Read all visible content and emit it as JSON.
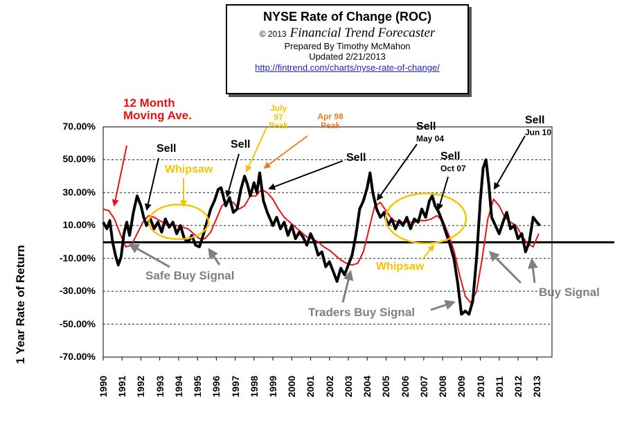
{
  "header": {
    "title": "NYSE Rate of Change (ROC)",
    "copyright": "© 2013",
    "brand": "Financial Trend Forecaster",
    "prepared_by": "Prepared By Timothy McMahon",
    "updated": "Updated 2/21/2013",
    "url": "http://fintrend.com/charts/nyse-rate-of-change/"
  },
  "annotations": {
    "moving_avg": "12 Month Moving Ave.",
    "sell_1992": "Sell",
    "sell_1997": "Sell",
    "july97": "July 97 Peak",
    "apr98": "Apr 98 Peak",
    "whipsaw_1": "Whipsaw",
    "sell_2003": "Sell",
    "sell_may04": "Sell",
    "may04": "May 04",
    "sell_oct07": "Sell",
    "oct07": "Oct 07",
    "sell_jun10": "Sell",
    "jun10": "Jun 10",
    "safe_buy": "Safe Buy Signal",
    "whipsaw_2": "Whipsaw",
    "traders_buy": "Traders Buy Signal",
    "buy_signal": "Buy Signal"
  },
  "colors": {
    "roc_line": "#000000",
    "moving_avg_line": "#ee1111",
    "sell_arrow": "#000000",
    "buy_arrow": "#808080",
    "whipsaw": "#f5c400",
    "apr98_arrow": "#ee7d22"
  },
  "chart_data": {
    "type": "line",
    "ylabel": "1 Year Rate of Return",
    "xlabel": "",
    "ylim": [
      -70,
      70
    ],
    "xlim": [
      1990,
      2013.8
    ],
    "y_ticks": [
      "70.00%",
      "50.00%",
      "30.00%",
      "10.00%",
      "-10.00%",
      "-30.00%",
      "-50.00%",
      "-70.00%"
    ],
    "x_ticks": [
      "1990",
      "1991",
      "1992",
      "1993",
      "1994",
      "1995",
      "1996",
      "1997",
      "1998",
      "1999",
      "2000",
      "2001",
      "2002",
      "2003",
      "2004",
      "2005",
      "2006",
      "2007",
      "2008",
      "2009",
      "2010",
      "2011",
      "2012",
      "2013"
    ],
    "grid": "horizontal dashed",
    "zero_line": true,
    "series": [
      {
        "name": "",
        "x": [
          1990.0,
          1990.2,
          1990.35,
          1990.5,
          1990.65,
          1990.8,
          1990.95,
          1991.1,
          1991.25,
          1991.4,
          1991.6,
          1991.8,
          1992.0,
          1992.15,
          1992.3,
          1992.5,
          1992.7,
          1992.9,
          1993.1,
          1993.3,
          1993.5,
          1993.7,
          1993.9,
          1994.1,
          1994.3,
          1994.5,
          1994.7,
          1994.9,
          1995.1,
          1995.3,
          1995.5,
          1995.7,
          1995.9,
          1996.1,
          1996.25,
          1996.5,
          1996.7,
          1996.9,
          1997.1,
          1997.3,
          1997.5,
          1997.65,
          1997.8,
          1998.0,
          1998.15,
          1998.3,
          1998.5,
          1998.7,
          1998.85,
          1999.0,
          1999.2,
          1999.4,
          1999.6,
          1999.8,
          2000.0,
          2000.2,
          2000.4,
          2000.6,
          2000.8,
          2001.0,
          2001.2,
          2001.4,
          2001.6,
          2001.8,
          2002.0,
          2002.2,
          2002.4,
          2002.6,
          2002.8,
          2003.0,
          2003.2,
          2003.4,
          2003.6,
          2003.8,
          2004.0,
          2004.15,
          2004.3,
          2004.5,
          2004.7,
          2004.9,
          2005.1,
          2005.3,
          2005.5,
          2005.7,
          2005.9,
          2006.1,
          2006.3,
          2006.5,
          2006.7,
          2006.9,
          2007.1,
          2007.3,
          2007.45,
          2007.6,
          2007.8,
          2008.0,
          2008.2,
          2008.4,
          2008.6,
          2008.8,
          2009.0,
          2009.2,
          2009.4,
          2009.6,
          2009.8,
          2010.0,
          2010.15,
          2010.3,
          2010.45,
          2010.6,
          2010.8,
          2011.0,
          2011.2,
          2011.4,
          2011.6,
          2011.8,
          2012.0,
          2012.2,
          2012.4,
          2012.6,
          2012.8,
          2013.0,
          2013.15
        ],
        "values": [
          12,
          8,
          13,
          0,
          -8,
          -14,
          -9,
          5,
          12,
          4,
          18,
          28,
          22,
          15,
          10,
          14,
          8,
          12,
          6,
          14,
          9,
          12,
          5,
          10,
          2,
          0,
          4,
          -2,
          -3,
          4,
          12,
          20,
          25,
          32,
          33,
          22,
          27,
          18,
          20,
          32,
          40,
          35,
          28,
          36,
          30,
          42,
          25,
          18,
          14,
          10,
          15,
          8,
          12,
          4,
          10,
          2,
          6,
          3,
          -2,
          5,
          0,
          -8,
          -6,
          -15,
          -12,
          -18,
          -24,
          -16,
          -20,
          -14,
          -8,
          4,
          20,
          25,
          33,
          42,
          30,
          20,
          15,
          18,
          10,
          14,
          8,
          13,
          10,
          15,
          8,
          14,
          12,
          20,
          15,
          25,
          28,
          22,
          18,
          12,
          5,
          -2,
          -10,
          -25,
          -44,
          -42,
          -44,
          -36,
          -10,
          25,
          45,
          50,
          35,
          15,
          10,
          5,
          12,
          18,
          8,
          10,
          2,
          5,
          -6,
          0,
          15,
          12,
          10
        ],
        "color": "#000000"
      },
      {
        "name": "12 Month Moving Ave.",
        "x": [
          1990.0,
          1990.3,
          1990.6,
          1990.9,
          1991.2,
          1991.5,
          1991.8,
          1992.1,
          1992.4,
          1992.7,
          1993.0,
          1993.3,
          1993.6,
          1993.9,
          1994.2,
          1994.5,
          1994.8,
          1995.1,
          1995.4,
          1995.7,
          1996.0,
          1996.3,
          1996.6,
          1996.9,
          1997.2,
          1997.5,
          1997.8,
          1998.1,
          1998.4,
          1998.7,
          1999.0,
          1999.3,
          1999.6,
          1999.9,
          2000.2,
          2000.5,
          2000.8,
          2001.1,
          2001.4,
          2001.7,
          2002.0,
          2002.3,
          2002.6,
          2002.9,
          2003.2,
          2003.5,
          2003.8,
          2004.1,
          2004.4,
          2004.7,
          2005.0,
          2005.3,
          2005.6,
          2005.9,
          2006.2,
          2006.5,
          2006.8,
          2007.1,
          2007.4,
          2007.7,
          2008.0,
          2008.3,
          2008.6,
          2008.9,
          2009.2,
          2009.5,
          2009.8,
          2010.1,
          2010.4,
          2010.7,
          2011.0,
          2011.3,
          2011.6,
          2011.9,
          2012.2,
          2012.5,
          2012.8,
          2013.1
        ],
        "values": [
          20,
          19,
          14,
          5,
          -3,
          -2,
          5,
          12,
          16,
          15,
          13,
          11,
          10,
          10,
          9,
          8,
          5,
          2,
          2,
          6,
          14,
          22,
          25,
          24,
          20,
          22,
          28,
          28,
          32,
          30,
          26,
          20,
          15,
          12,
          9,
          6,
          3,
          2,
          0,
          -3,
          -5,
          -8,
          -11,
          -13,
          -14,
          -13,
          -6,
          8,
          22,
          24,
          19,
          14,
          12,
          12,
          12,
          12,
          13,
          13,
          14,
          16,
          13,
          5,
          -5,
          -20,
          -33,
          -37,
          -30,
          -10,
          14,
          26,
          22,
          15,
          12,
          10,
          4,
          -1,
          -3,
          5
        ],
        "color": "#ee1111"
      }
    ]
  }
}
